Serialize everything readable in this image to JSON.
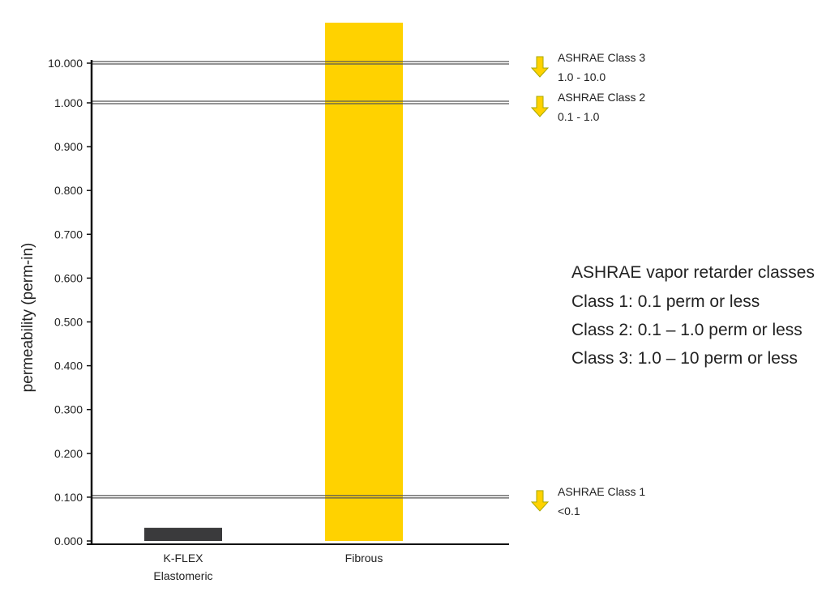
{
  "chart_data": {
    "type": "bar",
    "categories": [
      "K-FLEX Elastomeric",
      "Fibrous"
    ],
    "category_label_lines": [
      [
        "K-FLEX",
        "Elastomeric"
      ],
      [
        "Fibrous"
      ]
    ],
    "values": [
      0.03,
      10.5
    ],
    "bar_colors": [
      "#3a3a3c",
      "#ffd200"
    ],
    "ylabel": "permeability (perm-in)",
    "yticks": [
      {
        "value": 0.0,
        "label": "0.000"
      },
      {
        "value": 0.1,
        "label": "0.100"
      },
      {
        "value": 0.2,
        "label": "0.200"
      },
      {
        "value": 0.3,
        "label": "0.300"
      },
      {
        "value": 0.4,
        "label": "0.400"
      },
      {
        "value": 0.5,
        "label": "0.500"
      },
      {
        "value": 0.6,
        "label": "0.600"
      },
      {
        "value": 0.7,
        "label": "0.700"
      },
      {
        "value": 0.8,
        "label": "0.800"
      },
      {
        "value": 0.9,
        "label": "0.900"
      },
      {
        "value": 1.0,
        "label": "1.000"
      },
      {
        "value": 10.0,
        "label": "10.000"
      }
    ],
    "ylim": [
      0,
      10.0
    ],
    "axis_scale": "broken: linear 0–1.0, compressed segment 1.0–10.0",
    "grid": false,
    "reference_lines": [
      {
        "value": 0.1,
        "name": "ASHRAE Class 1",
        "range": "<0.1"
      },
      {
        "value": 1.0,
        "name": "ASHRAE Class 2",
        "range": "0.1 - 1.0"
      },
      {
        "value": 10.0,
        "name": "ASHRAE Class 3",
        "range": "1.0 - 10.0"
      }
    ],
    "notes": {
      "title": "ASHRAE vapor retarder classes",
      "lines": [
        "Class 1: 0.1 perm or less",
        "Class 2: 0.1 – 1.0 perm or less",
        "Class 3: 1.0 – 10 perm or less"
      ]
    },
    "colors": {
      "axis": "#111111",
      "reference_line": "#555555",
      "arrow_fill": "#ffd200",
      "arrow_stroke": "#a7a800",
      "text": "#222222"
    }
  }
}
